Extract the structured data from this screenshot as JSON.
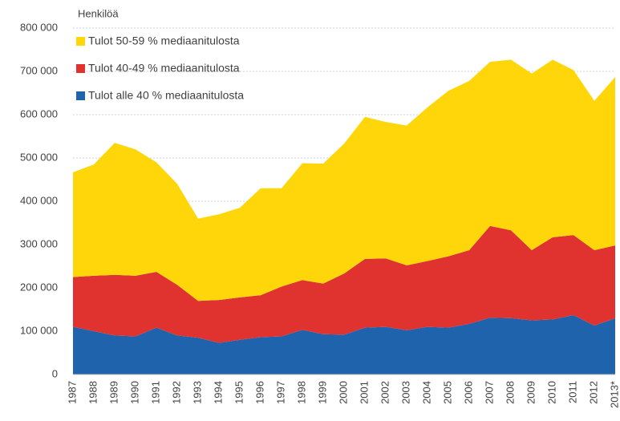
{
  "chart_data": {
    "type": "stacked_area",
    "y_label": "Henkilöä",
    "categories": [
      "1987",
      "1988",
      "1989",
      "1990",
      "1991",
      "1992",
      "1993",
      "1994",
      "1995",
      "1996",
      "1997",
      "1998",
      "1999",
      "2000",
      "2001",
      "2002",
      "2003",
      "2004",
      "2005",
      "2006",
      "2007",
      "2008",
      "2009",
      "2010",
      "2011",
      "2012",
      "2013*"
    ],
    "series": [
      {
        "name": "Tulot alle 40 % mediaanitulosta",
        "color": "#1f63ad",
        "values": [
          110000,
          100000,
          90000,
          88000,
          108000,
          90000,
          85000,
          73000,
          80000,
          86000,
          88000,
          103000,
          93000,
          92000,
          108000,
          110000,
          102000,
          110000,
          108000,
          117000,
          131000,
          130000,
          125000,
          127000,
          137000,
          113000,
          130000
        ]
      },
      {
        "name": "Tulot 40-49 % mediaanitulosta",
        "color": "#e0322f",
        "values": [
          115000,
          128000,
          140000,
          140000,
          129000,
          117000,
          85000,
          99000,
          98000,
          97000,
          115000,
          115000,
          117000,
          141000,
          159000,
          158000,
          150000,
          152000,
          165000,
          170000,
          212000,
          203000,
          162000,
          190000,
          185000,
          174000,
          168000
        ]
      },
      {
        "name": "Tulot 50-59 % mediaanitulosta",
        "color": "#ffd60a",
        "values": [
          242000,
          257000,
          305000,
          292000,
          253000,
          233000,
          190000,
          198000,
          207000,
          247000,
          227000,
          270000,
          277000,
          300000,
          328000,
          315000,
          323000,
          355000,
          382000,
          391000,
          379000,
          394000,
          408000,
          410000,
          381000,
          345000,
          389000
        ]
      }
    ],
    "ylim": [
      0,
      800000
    ],
    "yticks": [
      0,
      {
        "value": 100000,
        "label": "100 000"
      },
      {
        "value": 200000,
        "label": "200 000"
      },
      {
        "value": 300000,
        "label": "300 000"
      },
      {
        "value": 400000,
        "label": "400 000"
      },
      {
        "value": 500000,
        "label": "500 000"
      },
      {
        "value": 600000,
        "label": "600 000"
      },
      {
        "value": 700000,
        "label": "700 000"
      },
      {
        "value": 800000,
        "label": "800 000"
      }
    ],
    "grid": true
  }
}
